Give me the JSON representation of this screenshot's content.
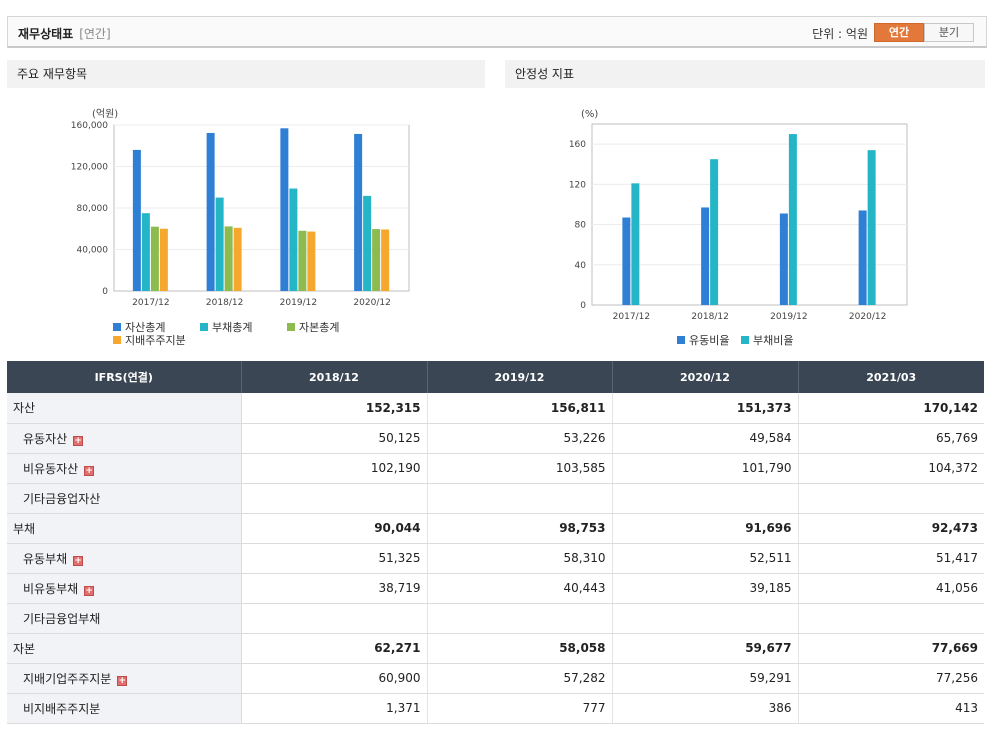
{
  "header": {
    "title": "재무상태표",
    "subtitle": "[연간]",
    "unit_label": "단위 : 억원",
    "toggle": [
      {
        "label": "연간",
        "active": true
      },
      {
        "label": "분기",
        "active": false
      }
    ]
  },
  "colors": {
    "blue": "#2f7fd4",
    "cyan": "#24b6c6",
    "green": "#8dbb4f",
    "orange": "#f6a82e",
    "table_header": "#3b4654"
  },
  "chart_data": [
    {
      "type": "bar",
      "panel_title": "주요 재무항목",
      "unit": "(억원)",
      "categories": [
        "2017/12",
        "2018/12",
        "2019/12",
        "2020/12"
      ],
      "ylim": [
        0,
        160000
      ],
      "yticks": [
        0,
        40000,
        80000,
        120000,
        160000
      ],
      "ytick_labels": [
        "0",
        "40,000",
        "80,000",
        "120,000",
        "160,000"
      ],
      "grid": true,
      "legend_position": "bottom",
      "series": [
        {
          "name": "자산총계",
          "color": "#2f7fd4",
          "values": [
            136000,
            152315,
            156811,
            151373
          ]
        },
        {
          "name": "부채총계",
          "color": "#24b6c6",
          "values": [
            75000,
            90044,
            98753,
            91696
          ]
        },
        {
          "name": "자본총계",
          "color": "#8dbb4f",
          "values": [
            62000,
            62271,
            58058,
            59677
          ]
        },
        {
          "name": "지배주주지분",
          "color": "#f6a82e",
          "values": [
            60000,
            60900,
            57282,
            59291
          ]
        }
      ]
    },
    {
      "type": "bar",
      "panel_title": "안정성 지표",
      "unit": "(%)",
      "categories": [
        "2017/12",
        "2018/12",
        "2019/12",
        "2020/12"
      ],
      "ylim": [
        0,
        180
      ],
      "yticks": [
        0,
        40,
        80,
        120,
        160
      ],
      "ytick_labels": [
        "0",
        "40",
        "80",
        "120",
        "160"
      ],
      "grid": true,
      "legend_position": "bottom",
      "series": [
        {
          "name": "유동비율",
          "color": "#2f7fd4",
          "values": [
            87,
            97,
            91,
            94
          ]
        },
        {
          "name": "부채비율",
          "color": "#24b6c6",
          "values": [
            121,
            145,
            170,
            154
          ]
        }
      ]
    }
  ],
  "table": {
    "header": [
      "IFRS(연결)",
      "2018/12",
      "2019/12",
      "2020/12",
      "2021/03"
    ],
    "rows": [
      {
        "label": "자산",
        "type": "main",
        "expand": false,
        "values": [
          "152,315",
          "156,811",
          "151,373",
          "170,142"
        ]
      },
      {
        "label": "유동자산",
        "type": "sub",
        "expand": true,
        "values": [
          "50,125",
          "53,226",
          "49,584",
          "65,769"
        ]
      },
      {
        "label": "비유동자산",
        "type": "sub",
        "expand": true,
        "values": [
          "102,190",
          "103,585",
          "101,790",
          "104,372"
        ]
      },
      {
        "label": "기타금융업자산",
        "type": "sub",
        "expand": false,
        "values": [
          "",
          "",
          "",
          ""
        ]
      },
      {
        "label": "부채",
        "type": "main",
        "expand": false,
        "values": [
          "90,044",
          "98,753",
          "91,696",
          "92,473"
        ]
      },
      {
        "label": "유동부채",
        "type": "sub",
        "expand": true,
        "values": [
          "51,325",
          "58,310",
          "52,511",
          "51,417"
        ]
      },
      {
        "label": "비유동부채",
        "type": "sub",
        "expand": true,
        "values": [
          "38,719",
          "40,443",
          "39,185",
          "41,056"
        ]
      },
      {
        "label": "기타금융업부채",
        "type": "sub",
        "expand": false,
        "values": [
          "",
          "",
          "",
          ""
        ]
      },
      {
        "label": "자본",
        "type": "main",
        "expand": false,
        "values": [
          "62,271",
          "58,058",
          "59,677",
          "77,669"
        ]
      },
      {
        "label": "지배기업주주지분",
        "type": "sub",
        "expand": true,
        "values": [
          "60,900",
          "57,282",
          "59,291",
          "77,256"
        ]
      },
      {
        "label": "비지배주주지분",
        "type": "sub",
        "expand": false,
        "values": [
          "1,371",
          "777",
          "386",
          "413"
        ]
      }
    ]
  }
}
